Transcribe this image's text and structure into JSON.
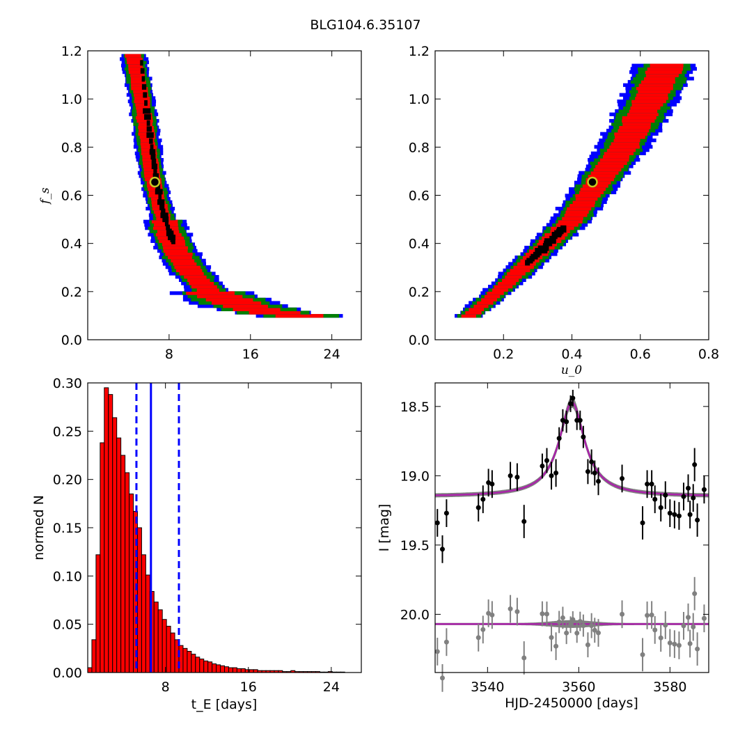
{
  "figure_title": "BLG104.6.35107",
  "chart_data": [
    {
      "id": "fs_vs_tE",
      "type": "heatmap",
      "title": "",
      "xlabel": "",
      "ylabel": "f_s",
      "xlim": [
        0,
        26.9
      ],
      "ylim": [
        0.0,
        1.2
      ],
      "xticks": [
        8,
        16,
        24
      ],
      "yticks": [
        0.0,
        0.2,
        0.4,
        0.6,
        0.8,
        1.0,
        1.2
      ],
      "xtick_labels": [
        "8",
        "16",
        "24"
      ],
      "ytick_labels": [
        "0.0",
        "0.2",
        "0.4",
        "0.6",
        "0.8",
        "1.0",
        "1.2"
      ],
      "levels": [
        "black",
        "red",
        "green",
        "blue"
      ],
      "level_colors": {
        "black": "#000000",
        "red": "#ff0000",
        "green": "#007f00",
        "blue": "#0000ff"
      },
      "ridge": [
        {
          "x": 4.5,
          "y": 1.18
        },
        {
          "x": 5.3,
          "y": 1.0
        },
        {
          "x": 5.8,
          "y": 0.85
        },
        {
          "x": 6.3,
          "y": 0.7
        },
        {
          "x": 6.8,
          "y": 0.6
        },
        {
          "x": 7.6,
          "y": 0.48
        },
        {
          "x": 8.6,
          "y": 0.38
        },
        {
          "x": 10.0,
          "y": 0.29
        },
        {
          "x": 12.0,
          "y": 0.2
        },
        {
          "x": 15.0,
          "y": 0.145
        },
        {
          "x": 18.0,
          "y": 0.115
        },
        {
          "x": 21.0,
          "y": 0.1
        },
        {
          "x": 24.0,
          "y": 0.1
        }
      ],
      "black_band": [
        {
          "x": 5.3,
          "y": 1.15
        },
        {
          "x": 5.8,
          "y": 0.95
        },
        {
          "x": 6.3,
          "y": 0.8
        },
        {
          "x": 6.7,
          "y": 0.68
        },
        {
          "x": 7.3,
          "y": 0.55
        },
        {
          "x": 8.0,
          "y": 0.45
        },
        {
          "x": 8.5,
          "y": 0.4
        }
      ],
      "best_fit": {
        "x": 6.6,
        "y": 0.655
      }
    },
    {
      "id": "fs_vs_u0",
      "type": "heatmap",
      "title": "",
      "xlabel": "u_0",
      "ylabel": "",
      "xlim": [
        0.0,
        0.8
      ],
      "ylim": [
        0.0,
        1.2
      ],
      "xticks": [
        0.2,
        0.4,
        0.6,
        0.8
      ],
      "yticks": [
        0.0,
        0.2,
        0.4,
        0.6,
        0.8,
        1.0,
        1.2
      ],
      "xtick_labels": [
        "0.2",
        "0.4",
        "0.6",
        "0.8"
      ],
      "ytick_labels": [
        "0.0",
        "0.2",
        "0.4",
        "0.6",
        "0.8",
        "1.0",
        "1.2"
      ],
      "ridge": [
        {
          "x": 0.1,
          "y": 0.1
        },
        {
          "x": 0.2,
          "y": 0.22
        },
        {
          "x": 0.3,
          "y": 0.36
        },
        {
          "x": 0.4,
          "y": 0.5
        },
        {
          "x": 0.48,
          "y": 0.66
        },
        {
          "x": 0.55,
          "y": 0.8
        },
        {
          "x": 0.62,
          "y": 0.98
        },
        {
          "x": 0.68,
          "y": 1.15
        }
      ],
      "black_band": [
        {
          "x": 0.27,
          "y": 0.32
        },
        {
          "x": 0.31,
          "y": 0.37
        },
        {
          "x": 0.35,
          "y": 0.43
        },
        {
          "x": 0.38,
          "y": 0.47
        }
      ],
      "best_fit": {
        "x": 0.46,
        "y": 0.655
      }
    },
    {
      "id": "tE_histogram",
      "type": "bar",
      "title": "",
      "xlabel": "t_E [days]",
      "ylabel": "normed N",
      "xlim": [
        0.5,
        26.9
      ],
      "ylim": [
        0.0,
        0.3
      ],
      "xticks": [
        8,
        16,
        24
      ],
      "yticks": [
        0.0,
        0.05,
        0.1,
        0.15,
        0.2,
        0.25,
        0.3
      ],
      "xtick_labels": [
        "8",
        "16",
        "24"
      ],
      "ytick_labels": [
        "0.00",
        "0.05",
        "0.10",
        "0.15",
        "0.20",
        "0.25",
        "0.30"
      ],
      "bin_width": 0.4,
      "bins_start": 0.5,
      "values": [
        0.005,
        0.034,
        0.122,
        0.238,
        0.295,
        0.288,
        0.264,
        0.243,
        0.225,
        0.207,
        0.185,
        0.167,
        0.15,
        0.122,
        0.101,
        0.084,
        0.073,
        0.065,
        0.055,
        0.048,
        0.041,
        0.034,
        0.028,
        0.025,
        0.022,
        0.019,
        0.016,
        0.014,
        0.012,
        0.011,
        0.009,
        0.008,
        0.007,
        0.006,
        0.005,
        0.005,
        0.004,
        0.004,
        0.003,
        0.003,
        0.003,
        0.002,
        0.002,
        0.002,
        0.002,
        0.002,
        0.002,
        0.001,
        0.001,
        0.002,
        0.001,
        0.001,
        0.001,
        0.001,
        0.001,
        0.001,
        0.0005,
        0.0005,
        0.001,
        0.0005,
        0.0005,
        0.0005
      ],
      "bar_color": "#ff0000",
      "median": 6.6,
      "lower": 5.2,
      "upper": 9.3,
      "line_color": "#0000ff"
    },
    {
      "id": "lightcurve",
      "type": "scatter",
      "title": "",
      "xlabel": "HJD-2450000 [days]",
      "ylabel": "I [mag]",
      "xlim": [
        3528.5,
        3588.5
      ],
      "ylim": [
        20.42,
        18.33
      ],
      "y_inverted": true,
      "xticks": [
        3540,
        3560,
        3580
      ],
      "yticks": [
        18.5,
        19.0,
        19.5,
        20.0
      ],
      "xtick_labels": [
        "3540",
        "3560",
        "3580"
      ],
      "ytick_labels": [
        "18.5",
        "19.0",
        "19.5",
        "20.0"
      ],
      "model": {
        "t0": 3558.5,
        "baseline": 19.15,
        "peak": 18.47,
        "width": 3.4,
        "color": "#aa22aa"
      },
      "residual_offset": 20.07,
      "points": [
        {
          "x": 3529.0,
          "y": 19.34,
          "err": 0.1
        },
        {
          "x": 3530.1,
          "y": 19.53,
          "err": 0.1
        },
        {
          "x": 3531.0,
          "y": 19.27,
          "err": 0.1
        },
        {
          "x": 3538.0,
          "y": 19.23,
          "err": 0.1
        },
        {
          "x": 3539.0,
          "y": 19.17,
          "err": 0.1
        },
        {
          "x": 3540.2,
          "y": 19.05,
          "err": 0.1
        },
        {
          "x": 3541.0,
          "y": 19.06,
          "err": 0.1
        },
        {
          "x": 3545.0,
          "y": 19.0,
          "err": 0.1
        },
        {
          "x": 3546.5,
          "y": 19.01,
          "err": 0.1
        },
        {
          "x": 3548.0,
          "y": 19.33,
          "err": 0.12
        },
        {
          "x": 3552.0,
          "y": 18.93,
          "err": 0.09
        },
        {
          "x": 3553.0,
          "y": 18.89,
          "err": 0.09
        },
        {
          "x": 3554.0,
          "y": 19.0,
          "err": 0.1
        },
        {
          "x": 3555.0,
          "y": 18.98,
          "err": 0.1
        },
        {
          "x": 3555.7,
          "y": 18.73,
          "err": 0.08
        },
        {
          "x": 3556.5,
          "y": 18.6,
          "err": 0.08
        },
        {
          "x": 3557.3,
          "y": 18.61,
          "err": 0.08
        },
        {
          "x": 3558.2,
          "y": 18.48,
          "err": 0.06
        },
        {
          "x": 3558.7,
          "y": 18.44,
          "err": 0.06
        },
        {
          "x": 3559.6,
          "y": 18.6,
          "err": 0.07
        },
        {
          "x": 3560.3,
          "y": 18.6,
          "err": 0.07
        },
        {
          "x": 3561.0,
          "y": 18.72,
          "err": 0.08
        },
        {
          "x": 3562.0,
          "y": 18.97,
          "err": 0.09
        },
        {
          "x": 3562.8,
          "y": 18.9,
          "err": 0.09
        },
        {
          "x": 3563.5,
          "y": 18.98,
          "err": 0.09
        },
        {
          "x": 3564.3,
          "y": 19.04,
          "err": 0.1
        },
        {
          "x": 3569.5,
          "y": 19.02,
          "err": 0.1
        },
        {
          "x": 3574.0,
          "y": 19.34,
          "err": 0.12
        },
        {
          "x": 3575.0,
          "y": 19.06,
          "err": 0.1
        },
        {
          "x": 3576.0,
          "y": 19.06,
          "err": 0.1
        },
        {
          "x": 3576.7,
          "y": 19.17,
          "err": 0.1
        },
        {
          "x": 3578.0,
          "y": 19.23,
          "err": 0.1
        },
        {
          "x": 3579.0,
          "y": 19.14,
          "err": 0.1
        },
        {
          "x": 3580.0,
          "y": 19.27,
          "err": 0.1
        },
        {
          "x": 3581.0,
          "y": 19.28,
          "err": 0.1
        },
        {
          "x": 3582.0,
          "y": 19.29,
          "err": 0.1
        },
        {
          "x": 3583.0,
          "y": 19.15,
          "err": 0.1
        },
        {
          "x": 3584.0,
          "y": 19.09,
          "err": 0.1
        },
        {
          "x": 3584.4,
          "y": 19.28,
          "err": 0.1
        },
        {
          "x": 3585.1,
          "y": 19.16,
          "err": 0.1
        },
        {
          "x": 3585.4,
          "y": 18.92,
          "err": 0.12
        },
        {
          "x": 3586.0,
          "y": 19.32,
          "err": 0.12
        },
        {
          "x": 3587.5,
          "y": 19.1,
          "err": 0.1
        }
      ],
      "point_color": "#000000",
      "residual_color": "#808080"
    }
  ]
}
